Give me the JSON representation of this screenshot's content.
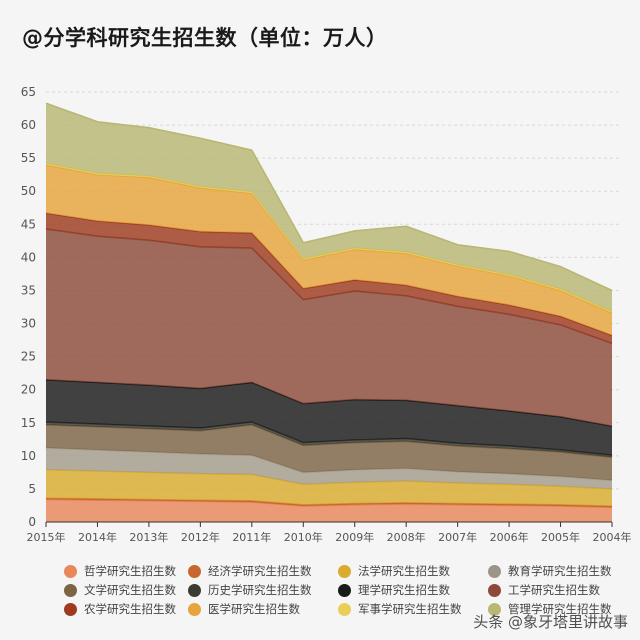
{
  "title": "@分学科研究生招生数（单位：万人）",
  "watermark": "头条 @象牙塔里讲故事",
  "chart_data": {
    "type": "area",
    "stacked": true,
    "title": "@分学科研究生招生数（单位：万人）",
    "xlabel": "",
    "ylabel": "",
    "ylim": [
      0,
      65
    ],
    "yticks": [
      0,
      5,
      10,
      15,
      20,
      25,
      30,
      35,
      40,
      45,
      50,
      55,
      60,
      65
    ],
    "grid": "dashed horizontal",
    "legend_position": "bottom",
    "categories": [
      "2015年",
      "2014年",
      "2013年",
      "2012年",
      "2011年",
      "2010年",
      "2009年",
      "2008年",
      "2007年",
      "2006年",
      "2005年",
      "2004年"
    ],
    "series": [
      {
        "name": "哲学研究生招生数",
        "color": "#e8875a",
        "values": [
          3.4,
          3.3,
          3.2,
          3.1,
          3.0,
          2.4,
          2.6,
          2.7,
          2.6,
          2.5,
          2.4,
          2.2
        ]
      },
      {
        "name": "经济学研究生招生数",
        "color": "#c9652e",
        "values": [
          0.2,
          0.2,
          0.2,
          0.2,
          0.2,
          0.2,
          0.2,
          0.2,
          0.2,
          0.2,
          0.2,
          0.2
        ]
      },
      {
        "name": "法学研究生招生数",
        "color": "#d9ac2e",
        "values": [
          4.3,
          4.2,
          4.1,
          4.0,
          4.0,
          3.1,
          3.2,
          3.3,
          3.1,
          3.0,
          2.8,
          2.6
        ]
      },
      {
        "name": "教育学研究生招生数",
        "color": "#a39c8c",
        "values": [
          3.3,
          3.2,
          3.1,
          3.0,
          2.9,
          1.8,
          1.9,
          1.9,
          1.7,
          1.6,
          1.5,
          1.3
        ]
      },
      {
        "name": "文学研究生招生数",
        "color": "#7c6445",
        "values": [
          3.5,
          3.5,
          3.5,
          3.5,
          4.6,
          4.1,
          4.1,
          4.1,
          3.9,
          3.8,
          3.7,
          3.5
        ]
      },
      {
        "name": "历史学研究生招生数",
        "color": "#3b3a33",
        "values": [
          0.4,
          0.4,
          0.4,
          0.4,
          0.4,
          0.4,
          0.4,
          0.4,
          0.4,
          0.4,
          0.3,
          0.3
        ]
      },
      {
        "name": "理学研究生招生数",
        "color": "#1a1a1a",
        "values": [
          6.4,
          6.3,
          6.2,
          6.0,
          6.0,
          5.9,
          6.1,
          5.8,
          5.7,
          5.3,
          5.0,
          4.4
        ]
      },
      {
        "name": "工学研究生招生数",
        "color": "#8c4a3a",
        "values": [
          22.8,
          22.1,
          21.9,
          21.4,
          20.3,
          15.7,
          16.4,
          15.8,
          15.0,
          14.6,
          13.9,
          12.5
        ]
      },
      {
        "name": "农学研究生招生数",
        "color": "#9e3a1e",
        "values": [
          2.4,
          2.3,
          2.3,
          2.3,
          2.3,
          1.7,
          1.7,
          1.6,
          1.5,
          1.4,
          1.3,
          1.2
        ]
      },
      {
        "name": "医学研究生招生数",
        "color": "#e7a33c",
        "values": [
          7.3,
          7.0,
          7.2,
          6.6,
          6.0,
          4.3,
          4.6,
          4.8,
          4.6,
          4.4,
          3.9,
          3.4
        ]
      },
      {
        "name": "军事学研究生招生数",
        "color": "#e9cf55",
        "values": [
          0.2,
          0.2,
          0.2,
          0.2,
          0.2,
          0.2,
          0.2,
          0.2,
          0.2,
          0.2,
          0.2,
          0.2
        ]
      },
      {
        "name": "管理学研究生招生数",
        "color": "#b8b774",
        "values": [
          9.1,
          7.8,
          7.3,
          7.3,
          6.3,
          2.4,
          2.6,
          3.9,
          3.0,
          3.5,
          3.4,
          3.2
        ]
      }
    ]
  },
  "legend": [
    {
      "label": "哲学研究生招生数",
      "color": "#e8875a"
    },
    {
      "label": "经济学研究生招生数",
      "color": "#c9652e"
    },
    {
      "label": "法学研究生招生数",
      "color": "#d9ac2e"
    },
    {
      "label": "教育学研究生招生数",
      "color": "#9a9588"
    },
    {
      "label": "文学研究生招生数",
      "color": "#7c6445"
    },
    {
      "label": "历史学研究生招生数",
      "color": "#3b3a33"
    },
    {
      "label": "理学研究生招生数",
      "color": "#1a1a1a"
    },
    {
      "label": "工学研究生招生数",
      "color": "#8c4a3a"
    },
    {
      "label": "农学研究生招生数",
      "color": "#9e3a1e"
    },
    {
      "label": "医学研究生招生数",
      "color": "#e7a33c"
    },
    {
      "label": "军事学研究生招生数",
      "color": "#e9cf55"
    },
    {
      "label": "管理学研究生招生数",
      "color": "#b8b774"
    }
  ]
}
